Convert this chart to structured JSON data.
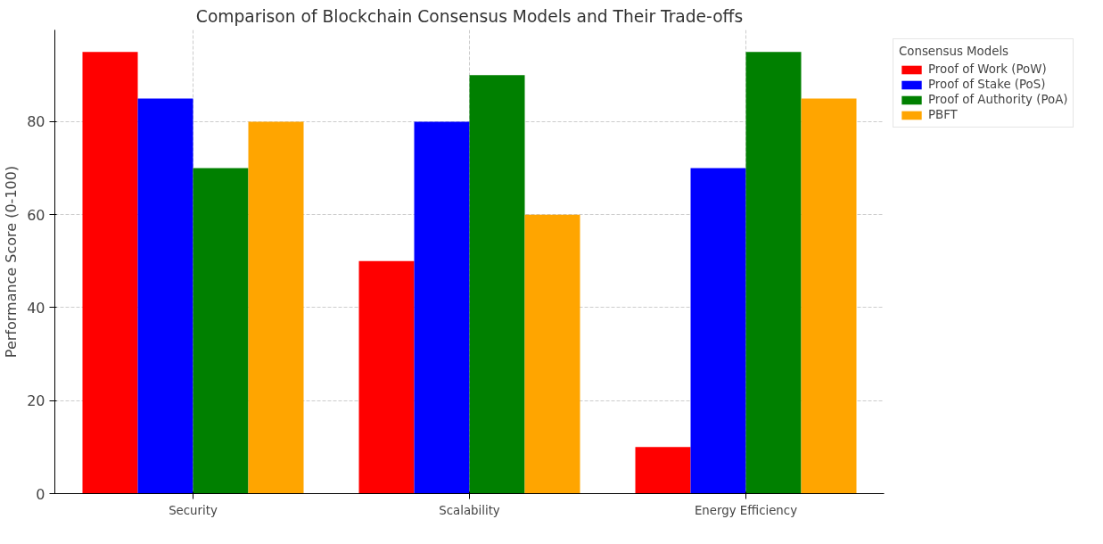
{
  "chart_data": {
    "type": "bar",
    "title": "Comparison of Blockchain Consensus Models and Their Trade-offs",
    "ylabel": "Performance Score (0-100)",
    "legend_title": "Consensus Models",
    "categories": [
      "Security",
      "Scalability",
      "Energy Efficiency"
    ],
    "series": [
      {
        "name": "Proof of Work (PoW)",
        "color": "#ff0000",
        "values": [
          95,
          50,
          10
        ]
      },
      {
        "name": "Proof of Stake (PoS)",
        "color": "#0000ff",
        "values": [
          85,
          80,
          70
        ]
      },
      {
        "name": "Proof of Authority (PoA)",
        "color": "#008000",
        "values": [
          70,
          90,
          95
        ]
      },
      {
        "name": "PBFT",
        "color": "#ffa500",
        "values": [
          80,
          60,
          85
        ]
      }
    ],
    "ylim": [
      0,
      99.75
    ],
    "yticks": [
      0,
      20,
      40,
      60,
      80
    ],
    "grid": true,
    "legend": "right"
  }
}
